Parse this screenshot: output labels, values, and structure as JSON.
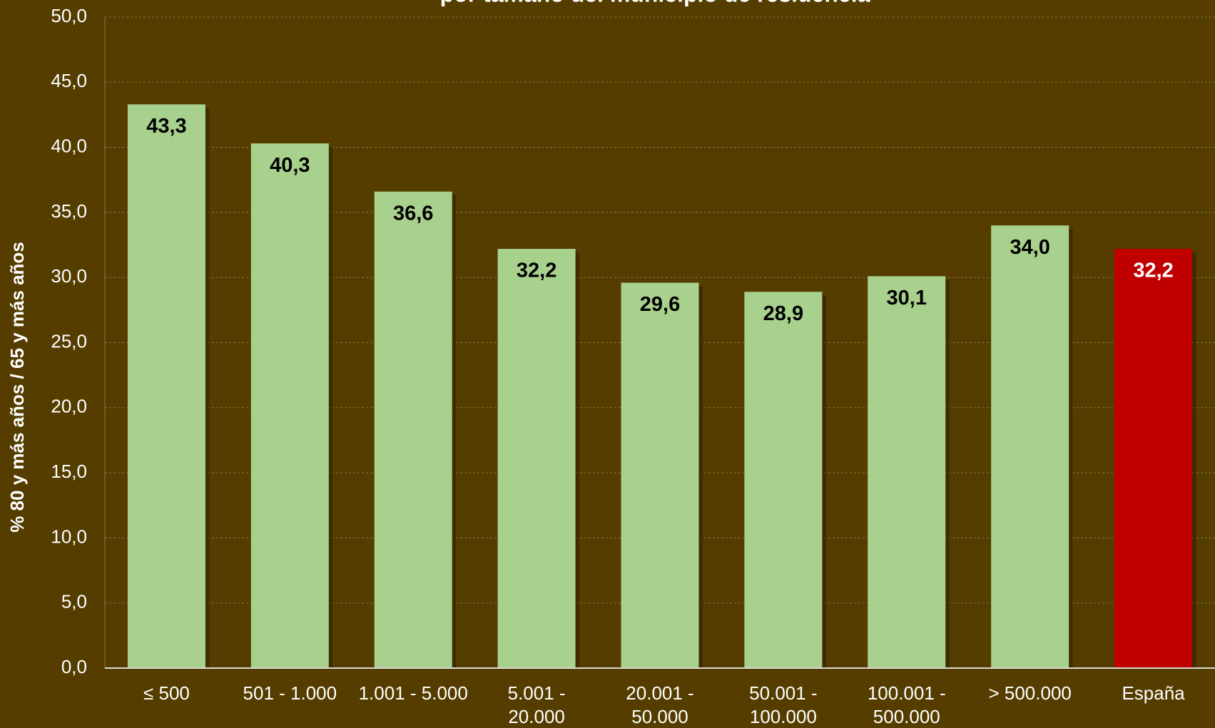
{
  "chart_data": {
    "type": "bar",
    "title": "por tamaño del municipio de residencia",
    "y_label": "% 80 y más años / 65 y más años",
    "categories": [
      "≤ 500",
      "501 - 1.000",
      "1.001 - 5.000",
      "5.001 -\n20.000",
      "20.001 -\n50.000",
      "50.001 -\n100.000",
      "100.001 -\n500.000",
      "> 500.000",
      "España"
    ],
    "values": [
      43.3,
      40.3,
      36.6,
      32.2,
      29.6,
      28.9,
      30.1,
      34.0,
      32.2
    ],
    "value_labels": [
      "43,3",
      "40,3",
      "36,6",
      "32,2",
      "29,6",
      "28,9",
      "30,1",
      "34,0",
      "32,2"
    ],
    "colors": [
      "#a9d18e",
      "#a9d18e",
      "#a9d18e",
      "#a9d18e",
      "#a9d18e",
      "#a9d18e",
      "#a9d18e",
      "#a9d18e",
      "#c00000"
    ],
    "ylim": [
      0,
      50
    ],
    "yticks": [
      {
        "value": 0,
        "label": "0,0"
      },
      {
        "value": 5,
        "label": "5,0"
      },
      {
        "value": 10,
        "label": "10,0"
      },
      {
        "value": 15,
        "label": "15,0"
      },
      {
        "value": 20,
        "label": "20,0"
      },
      {
        "value": 25,
        "label": "25,0"
      },
      {
        "value": 30,
        "label": "30,0"
      },
      {
        "value": 35,
        "label": "35,0"
      },
      {
        "value": 40,
        "label": "40,0"
      },
      {
        "value": 45,
        "label": "45,0"
      },
      {
        "value": 50,
        "label": "50,0"
      }
    ],
    "grid": true
  }
}
